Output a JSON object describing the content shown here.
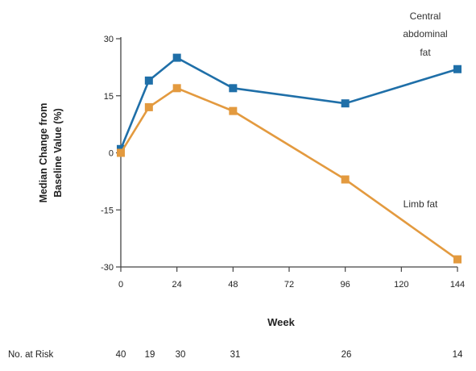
{
  "chart_data": {
    "type": "line",
    "xlabel": "Week",
    "ylabel_lines": [
      "Median Change from",
      "Baseline Value (%)"
    ],
    "x_ticks": [
      0,
      24,
      48,
      72,
      96,
      120,
      144
    ],
    "x_tick_labels": [
      "0",
      "24",
      "48",
      "72",
      "96",
      "120",
      "144"
    ],
    "xlim": [
      0,
      144
    ],
    "y_ticks": [
      -30,
      -15,
      0,
      15,
      30
    ],
    "y_tick_labels": [
      "-30",
      "-15",
      "0",
      "15",
      "30"
    ],
    "ylim": [
      -30,
      30
    ],
    "grid": false,
    "series": [
      {
        "name_lines": [
          "Central",
          "abdominal",
          "fat"
        ],
        "color": "#1f6fa8",
        "marker": "square",
        "x": [
          0,
          12,
          24,
          48,
          96,
          144
        ],
        "y": [
          1,
          19,
          25,
          17,
          13,
          22
        ]
      },
      {
        "name_lines": [
          "Limb fat"
        ],
        "color": "#e39a3f",
        "marker": "square",
        "x": [
          0,
          12,
          24,
          48,
          96,
          144
        ],
        "y": [
          0,
          12,
          17,
          11,
          -7,
          -28
        ]
      }
    ],
    "at_risk": {
      "label": "No. at Risk",
      "items": [
        {
          "week": 0,
          "value": "40"
        },
        {
          "week": 12,
          "value": "19"
        },
        {
          "week": 24,
          "value": "30"
        },
        {
          "week": 48,
          "value": "31"
        },
        {
          "week": 96,
          "value": "26"
        },
        {
          "week": 144,
          "value": "14"
        }
      ]
    }
  }
}
